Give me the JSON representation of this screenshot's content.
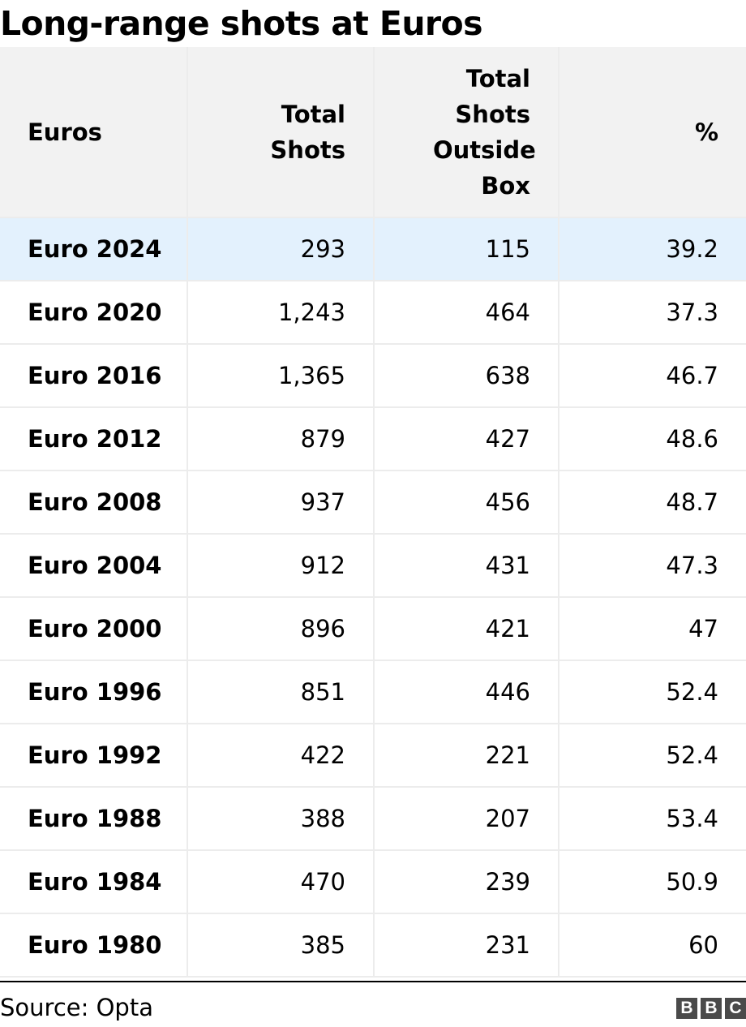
{
  "chart_data": {
    "type": "table",
    "title": "Long-range shots at Euros",
    "columns": [
      "Euros",
      "Total Shots",
      "Total Shots Outside Box",
      "%"
    ],
    "rows": [
      {
        "euros": "Euro 2024",
        "total_shots": "293",
        "outside_box": "115",
        "pct": "39.2"
      },
      {
        "euros": "Euro 2020",
        "total_shots": "1,243",
        "outside_box": "464",
        "pct": "37.3"
      },
      {
        "euros": "Euro 2016",
        "total_shots": "1,365",
        "outside_box": "638",
        "pct": "46.7"
      },
      {
        "euros": "Euro 2012",
        "total_shots": "879",
        "outside_box": "427",
        "pct": "48.6"
      },
      {
        "euros": "Euro 2008",
        "total_shots": "937",
        "outside_box": "456",
        "pct": "48.7"
      },
      {
        "euros": "Euro 2004",
        "total_shots": "912",
        "outside_box": "431",
        "pct": "47.3"
      },
      {
        "euros": "Euro 2000",
        "total_shots": "896",
        "outside_box": "421",
        "pct": "47"
      },
      {
        "euros": "Euro 1996",
        "total_shots": "851",
        "outside_box": "446",
        "pct": "52.4"
      },
      {
        "euros": "Euro 1992",
        "total_shots": "422",
        "outside_box": "221",
        "pct": "52.4"
      },
      {
        "euros": "Euro 1988",
        "total_shots": "388",
        "outside_box": "207",
        "pct": "53.4"
      },
      {
        "euros": "Euro 1984",
        "total_shots": "470",
        "outside_box": "239",
        "pct": "50.9"
      },
      {
        "euros": "Euro 1980",
        "total_shots": "385",
        "outside_box": "231",
        "pct": "60"
      }
    ],
    "highlight_row": "Euro 2024",
    "colors": {
      "header_bg": "#f2f2f2",
      "highlight_bg": "#e3f1fd",
      "grid": "#ececec"
    }
  },
  "footer": {
    "source": "Source: Opta",
    "logo_letters": [
      "B",
      "B",
      "C"
    ]
  }
}
